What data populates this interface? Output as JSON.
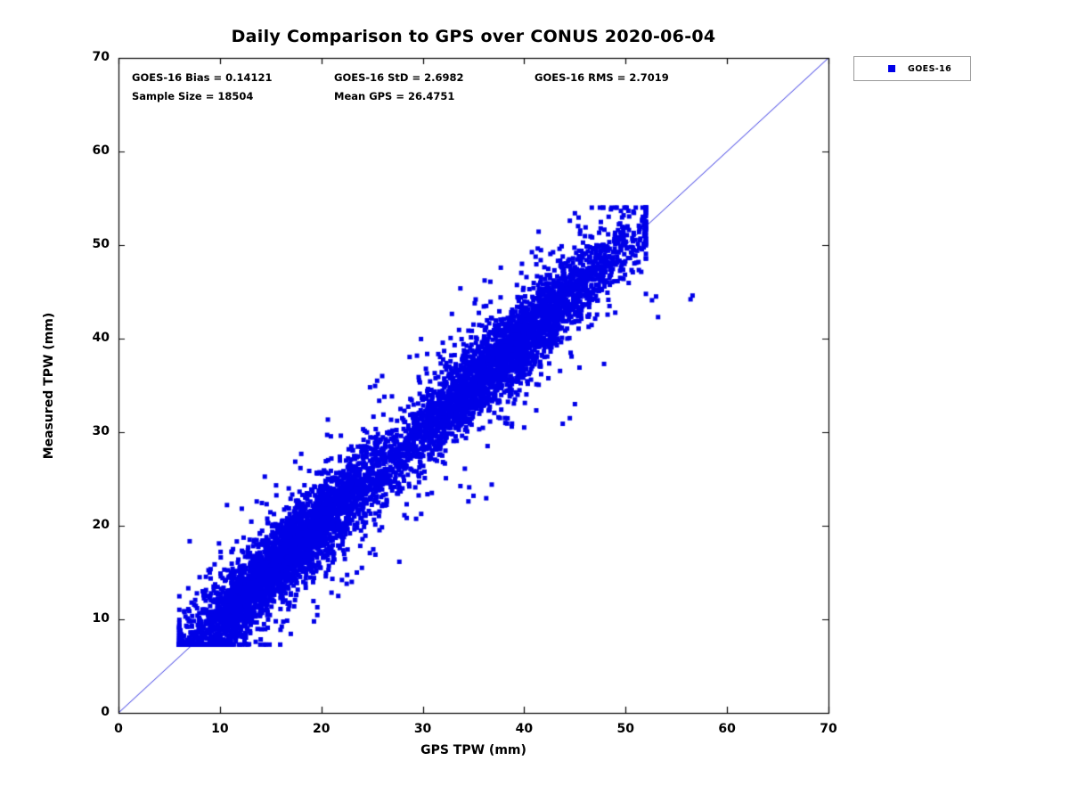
{
  "title": "Daily Comparison to GPS over CONUS 2020-06-04",
  "annotations": {
    "bias": "GOES-16 Bias = 0.14121",
    "std": "GOES-16 StD = 2.6982",
    "rms": "GOES-16 RMS = 2.7019",
    "sample_size": "Sample Size = 18504",
    "mean_gps": "Mean GPS = 26.4751"
  },
  "legend": {
    "label": "GOES-16",
    "marker_color": "#0000e8",
    "position": "outside-top-right"
  },
  "chart_data": {
    "type": "scatter",
    "title": "Daily Comparison to GPS over CONUS 2020-06-04",
    "xlabel": "GPS TPW (mm)",
    "ylabel": "Measured TPW (mm)",
    "xlim": [
      0,
      70
    ],
    "ylim": [
      0,
      70
    ],
    "xticks": [
      0,
      10,
      20,
      30,
      40,
      50,
      60,
      70
    ],
    "yticks": [
      0,
      10,
      20,
      30,
      40,
      50,
      60,
      70
    ],
    "grid": false,
    "legend_position": "outside-top-right",
    "reference_line": {
      "type": "identity",
      "from": [
        0,
        0
      ],
      "to": [
        70,
        70
      ],
      "color": "#2a2ae0",
      "width": 1
    },
    "series": [
      {
        "name": "GOES-16",
        "marker": "filled-square",
        "color": "#0000e8",
        "marker_px": 5,
        "n_points": 18504,
        "bias": 0.14121,
        "std": 2.6982,
        "rms": 2.7019,
        "mean_gps": 26.4751,
        "x_range": [
          6,
          57
        ],
        "y_range": [
          7.3,
          54
        ],
        "relationship": "y approximately equals x (tight cloud along 1:1 line)"
      }
    ],
    "synthesis": {
      "seed": 20200604,
      "rendered_points": 7000,
      "noise_std": 2.0,
      "outlier_frac": 0.15,
      "outlier_extra_std": 3.5,
      "x_mixture": [
        {
          "type": "normal",
          "mean": 16,
          "sd": 5.5,
          "w": 0.48
        },
        {
          "type": "normal",
          "mean": 38,
          "sd": 6.0,
          "w": 0.44
        },
        {
          "type": "uniform",
          "lo": 6,
          "hi": 52,
          "w": 0.08
        }
      ],
      "x_clip": [
        6,
        52
      ],
      "y_clip": [
        7.3,
        54
      ],
      "extra_points": [
        [
          45,
          53.4
        ],
        [
          44.5,
          52.6
        ],
        [
          45.5,
          51.2
        ],
        [
          51,
          54
        ],
        [
          50.8,
          51.3
        ],
        [
          56.6,
          44.6
        ],
        [
          56.4,
          44.2
        ],
        [
          53.2,
          42.3
        ],
        [
          52.6,
          44.1
        ],
        [
          53,
          44.5
        ],
        [
          35,
          23.2
        ],
        [
          36.8,
          24.4
        ],
        [
          30.2,
          25.1
        ],
        [
          34.5,
          22.6
        ],
        [
          28,
          24
        ],
        [
          44.5,
          31.5
        ],
        [
          45,
          33
        ],
        [
          43.8,
          30.9
        ],
        [
          40,
          30.5
        ],
        [
          25.5,
          35.5
        ],
        [
          26,
          36
        ],
        [
          24.8,
          34.8
        ],
        [
          23,
          14
        ],
        [
          24,
          15.5
        ],
        [
          22.5,
          13.8
        ],
        [
          23.5,
          15
        ],
        [
          8,
          14.5
        ],
        [
          9,
          15
        ],
        [
          6.4,
          7.5
        ],
        [
          7,
          8
        ],
        [
          6.8,
          9.2
        ]
      ]
    }
  },
  "plot_style": {
    "axis_color": "#000000",
    "background": "#ffffff",
    "tick_direction": "in"
  }
}
